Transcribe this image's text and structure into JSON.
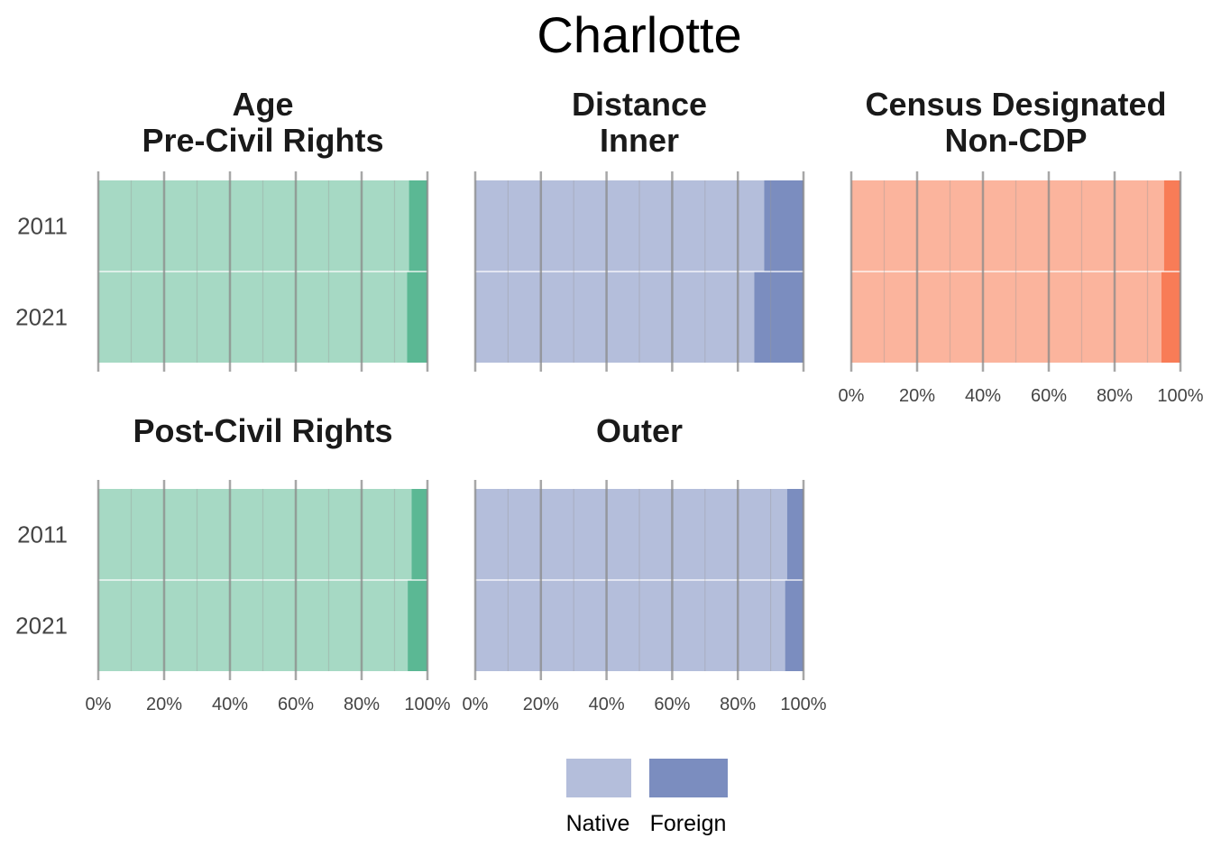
{
  "chart_data": {
    "type": "bar",
    "orientation": "horizontal",
    "stacked": "percent",
    "title": "Charlotte",
    "categories": [
      "2011",
      "2021"
    ],
    "xlim": [
      0,
      100
    ],
    "x_ticks": [
      "0%",
      "20%",
      "40%",
      "60%",
      "80%",
      "100%"
    ],
    "grid": true,
    "legend": {
      "position": "bottom",
      "entries": [
        {
          "label": "Native",
          "color": "#b4bedb"
        },
        {
          "label": "Foreign",
          "color": "#7b8dbf"
        }
      ]
    },
    "panels": [
      {
        "id": "age-pre",
        "title_lines": [
          "Age",
          "Pre-Civil Rights"
        ],
        "colors": {
          "native": "#a6d9c4",
          "foreign": "#5bb894"
        },
        "series": [
          {
            "name": "Native",
            "values": [
              94.4,
              93.8
            ]
          },
          {
            "name": "Foreign",
            "values": [
              5.6,
              6.2
            ]
          }
        ],
        "show_y_labels": true,
        "show_x_labels": false
      },
      {
        "id": "distance-inner",
        "title_lines": [
          "Distance",
          "Inner"
        ],
        "colors": {
          "native": "#b4bedb",
          "foreign": "#7b8dbf"
        },
        "series": [
          {
            "name": "Native",
            "values": [
              88.0,
              85.0
            ]
          },
          {
            "name": "Foreign",
            "values": [
              12.0,
              15.0
            ]
          }
        ],
        "show_y_labels": false,
        "show_x_labels": false
      },
      {
        "id": "census-noncdp",
        "title_lines": [
          "Census Designated",
          "Non-CDP"
        ],
        "colors": {
          "native": "#fbb49d",
          "foreign": "#f87c57"
        },
        "series": [
          {
            "name": "Native",
            "values": [
              95.0,
              94.2
            ]
          },
          {
            "name": "Foreign",
            "values": [
              5.0,
              5.8
            ]
          }
        ],
        "show_y_labels": false,
        "show_x_labels": true
      },
      {
        "id": "age-post",
        "title_lines": [
          "Post-Civil Rights"
        ],
        "colors": {
          "native": "#a6d9c4",
          "foreign": "#5bb894"
        },
        "series": [
          {
            "name": "Native",
            "values": [
              95.2,
              94.0
            ]
          },
          {
            "name": "Foreign",
            "values": [
              4.8,
              6.0
            ]
          }
        ],
        "show_y_labels": true,
        "show_x_labels": true
      },
      {
        "id": "distance-outer",
        "title_lines": [
          "Outer"
        ],
        "colors": {
          "native": "#b4bedb",
          "foreign": "#7b8dbf"
        },
        "series": [
          {
            "name": "Native",
            "values": [
              95.0,
              94.4
            ]
          },
          {
            "name": "Foreign",
            "values": [
              5.0,
              5.6
            ]
          }
        ],
        "show_y_labels": false,
        "show_x_labels": true
      }
    ]
  }
}
